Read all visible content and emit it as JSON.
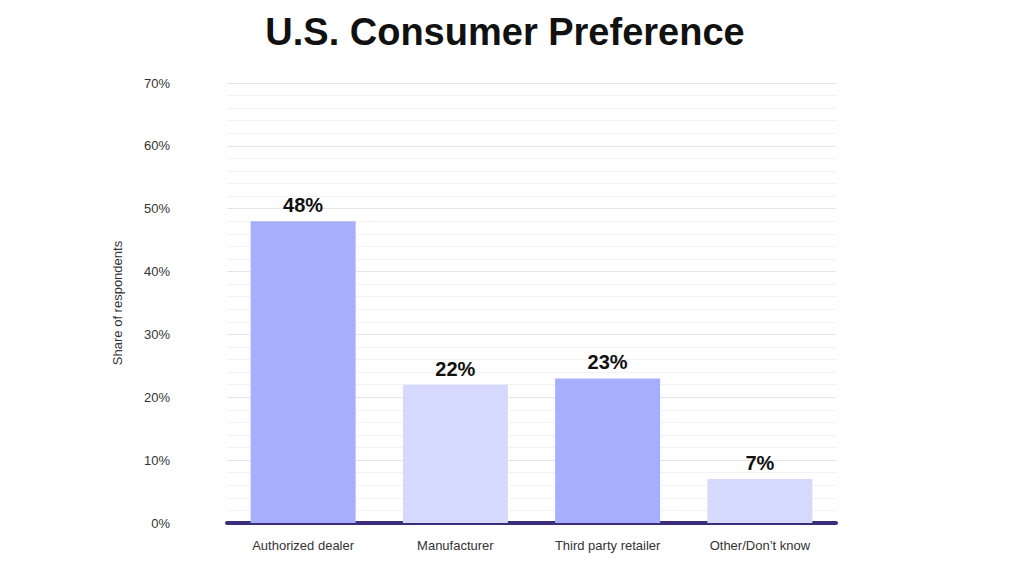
{
  "chart_data": {
    "type": "bar",
    "title": "U.S. Consumer Preference",
    "y_label": "Share of respondents",
    "categories": [
      "Authorized dealer",
      "Manufacturer",
      "Third party retailer",
      "Other/Don’t know"
    ],
    "values": [
      48,
      22,
      23,
      7
    ],
    "value_labels": [
      "48%",
      "22%",
      "23%",
      "7%"
    ],
    "colors": [
      "#a5affd",
      "#d5d9fd",
      "#a5affd",
      "#d5d9fd"
    ],
    "ylim": [
      0,
      70
    ],
    "yticks": [
      {
        "value": 0,
        "label": "0%"
      },
      {
        "value": 10,
        "label": "10%"
      },
      {
        "value": 20,
        "label": "20%"
      },
      {
        "value": 30,
        "label": "30%"
      },
      {
        "value": 40,
        "label": "40%"
      },
      {
        "value": 50,
        "label": "50%"
      },
      {
        "value": 60,
        "label": "60%"
      },
      {
        "value": 70,
        "label": "70%"
      }
    ],
    "grid": true,
    "data_labels": true
  }
}
